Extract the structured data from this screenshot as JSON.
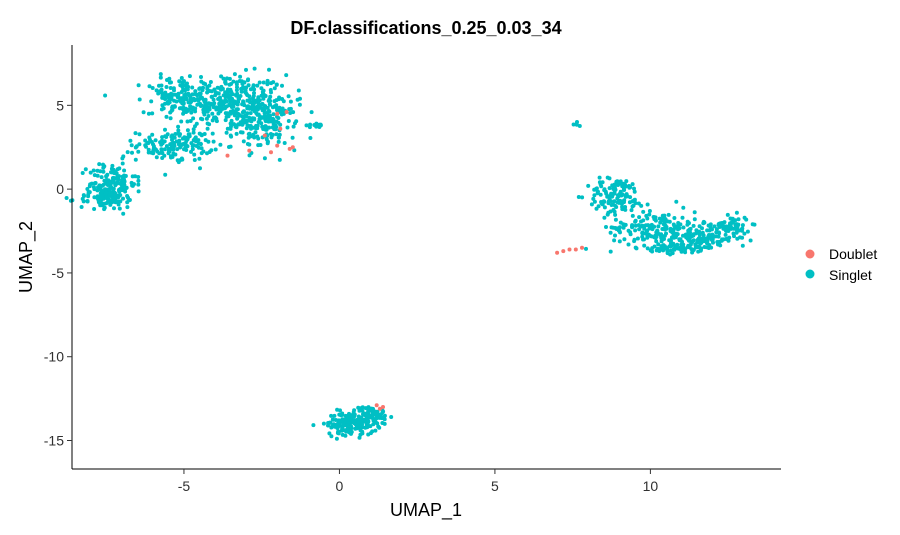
{
  "chart_data": {
    "type": "scatter",
    "title": "DF.classifications_0.25_0.03_34",
    "xlabel": "UMAP_1",
    "ylabel": "UMAP_2",
    "xlim": [
      -8.6,
      14.2
    ],
    "ylim": [
      -16.7,
      8.6
    ],
    "x_ticks": [
      -5,
      0,
      5,
      10
    ],
    "y_ticks": [
      5,
      0,
      -5,
      -10,
      -15
    ],
    "grid": false,
    "legend_position": "right",
    "series": [
      {
        "name": "Doublet",
        "color": "#F8766D",
        "points": [
          [
            -2.0,
            4.5
          ],
          [
            -1.7,
            4.6
          ],
          [
            -2.4,
            3.2
          ],
          [
            -1.9,
            3.6
          ],
          [
            -2.2,
            2.2
          ],
          [
            -3.6,
            2.0
          ],
          [
            -2.9,
            2.3
          ],
          [
            -2.0,
            2.6
          ],
          [
            -1.6,
            2.4
          ],
          [
            -1.5,
            2.5
          ],
          [
            7.0,
            -3.8
          ],
          [
            7.2,
            -3.7
          ],
          [
            7.4,
            -3.6
          ],
          [
            7.6,
            -3.6
          ],
          [
            7.8,
            -3.5
          ],
          [
            1.2,
            -12.9
          ],
          [
            1.4,
            -13.0
          ],
          [
            1.3,
            -13.1
          ]
        ]
      },
      {
        "name": "Singlet",
        "color": "#00BFC4",
        "clusters": [
          {
            "cx": -3.6,
            "cy": 5.2,
            "sx": 1.3,
            "sy": 1.1,
            "n": 380
          },
          {
            "cx": -2.4,
            "cy": 3.9,
            "sx": 0.7,
            "sy": 1.0,
            "n": 160
          },
          {
            "cx": -5.3,
            "cy": 2.6,
            "sx": 0.8,
            "sy": 0.6,
            "n": 150
          },
          {
            "cx": -5.2,
            "cy": 5.6,
            "sx": 0.7,
            "sy": 0.7,
            "n": 90
          },
          {
            "cx": -7.3,
            "cy": 0.3,
            "sx": 0.5,
            "sy": 0.9,
            "n": 150
          },
          {
            "cx": -7.6,
            "cy": -0.6,
            "sx": 0.5,
            "sy": 0.4,
            "n": 60
          },
          {
            "cx": -0.9,
            "cy": 3.8,
            "sx": 0.3,
            "sy": 0.15,
            "n": 14
          },
          {
            "cx": 7.7,
            "cy": 3.9,
            "sx": 0.1,
            "sy": 0.1,
            "n": 6
          },
          {
            "cx": 8.9,
            "cy": -0.4,
            "sx": 0.6,
            "sy": 0.7,
            "n": 120
          },
          {
            "cx": 10.1,
            "cy": -2.3,
            "sx": 0.9,
            "sy": 0.8,
            "n": 170
          },
          {
            "cx": 11.6,
            "cy": -2.9,
            "sx": 0.8,
            "sy": 0.5,
            "n": 150
          },
          {
            "cx": 12.6,
            "cy": -2.2,
            "sx": 0.4,
            "sy": 0.4,
            "n": 60
          },
          {
            "cx": 10.8,
            "cy": -3.5,
            "sx": 0.5,
            "sy": 0.2,
            "n": 45
          },
          {
            "cx": 0.4,
            "cy": -14.0,
            "sx": 0.55,
            "sy": 0.45,
            "n": 170
          },
          {
            "cx": 1.0,
            "cy": -13.4,
            "sx": 0.35,
            "sy": 0.3,
            "n": 60
          }
        ]
      }
    ]
  }
}
